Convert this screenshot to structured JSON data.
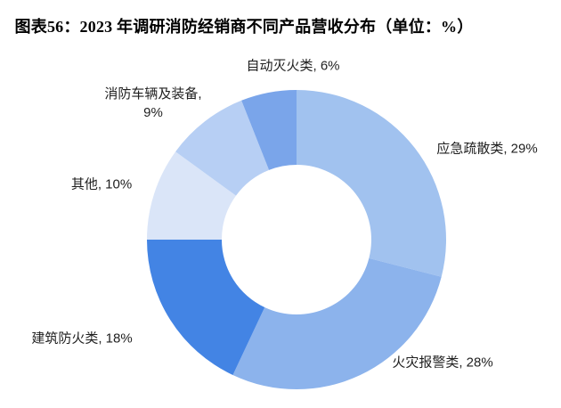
{
  "header": {
    "title": "图表56：2023 年调研消防经销商不同产品营收分布（单位：%）"
  },
  "chart_data": {
    "type": "pie",
    "subtype": "donut",
    "title": "图表56：2023 年调研消防经销商不同产品营收分布（单位：%）",
    "unit": "%",
    "categories": [
      "应急疏散类",
      "火灾报警类",
      "建筑防火类",
      "其他",
      "消防车辆及装备",
      "自动灭火类"
    ],
    "values": [
      29,
      28,
      18,
      10,
      9,
      6
    ],
    "colors": [
      "#A1C2EF",
      "#8CB3EC",
      "#4384E4",
      "#DAE5F8",
      "#B7CFF4",
      "#7AA5EA"
    ],
    "slice_ids": [
      "emergency-evacuation",
      "fire-alarm",
      "building-fireproofing",
      "other",
      "fire-vehicles-equipment",
      "auto-extinguishing"
    ],
    "start_angle_deg": 0,
    "direction": "clockwise",
    "hole_ratio": 0.5,
    "legend": "none",
    "labels": [
      {
        "text": "应急疏散类, 29%"
      },
      {
        "text": "火灾报警类, 28%"
      },
      {
        "text": "建筑防火类, 18%"
      },
      {
        "text": "其他, 10%"
      },
      {
        "line1": "消防车辆及装备,",
        "line2": "9%"
      },
      {
        "text": "自动灭火类, 6%"
      }
    ]
  }
}
